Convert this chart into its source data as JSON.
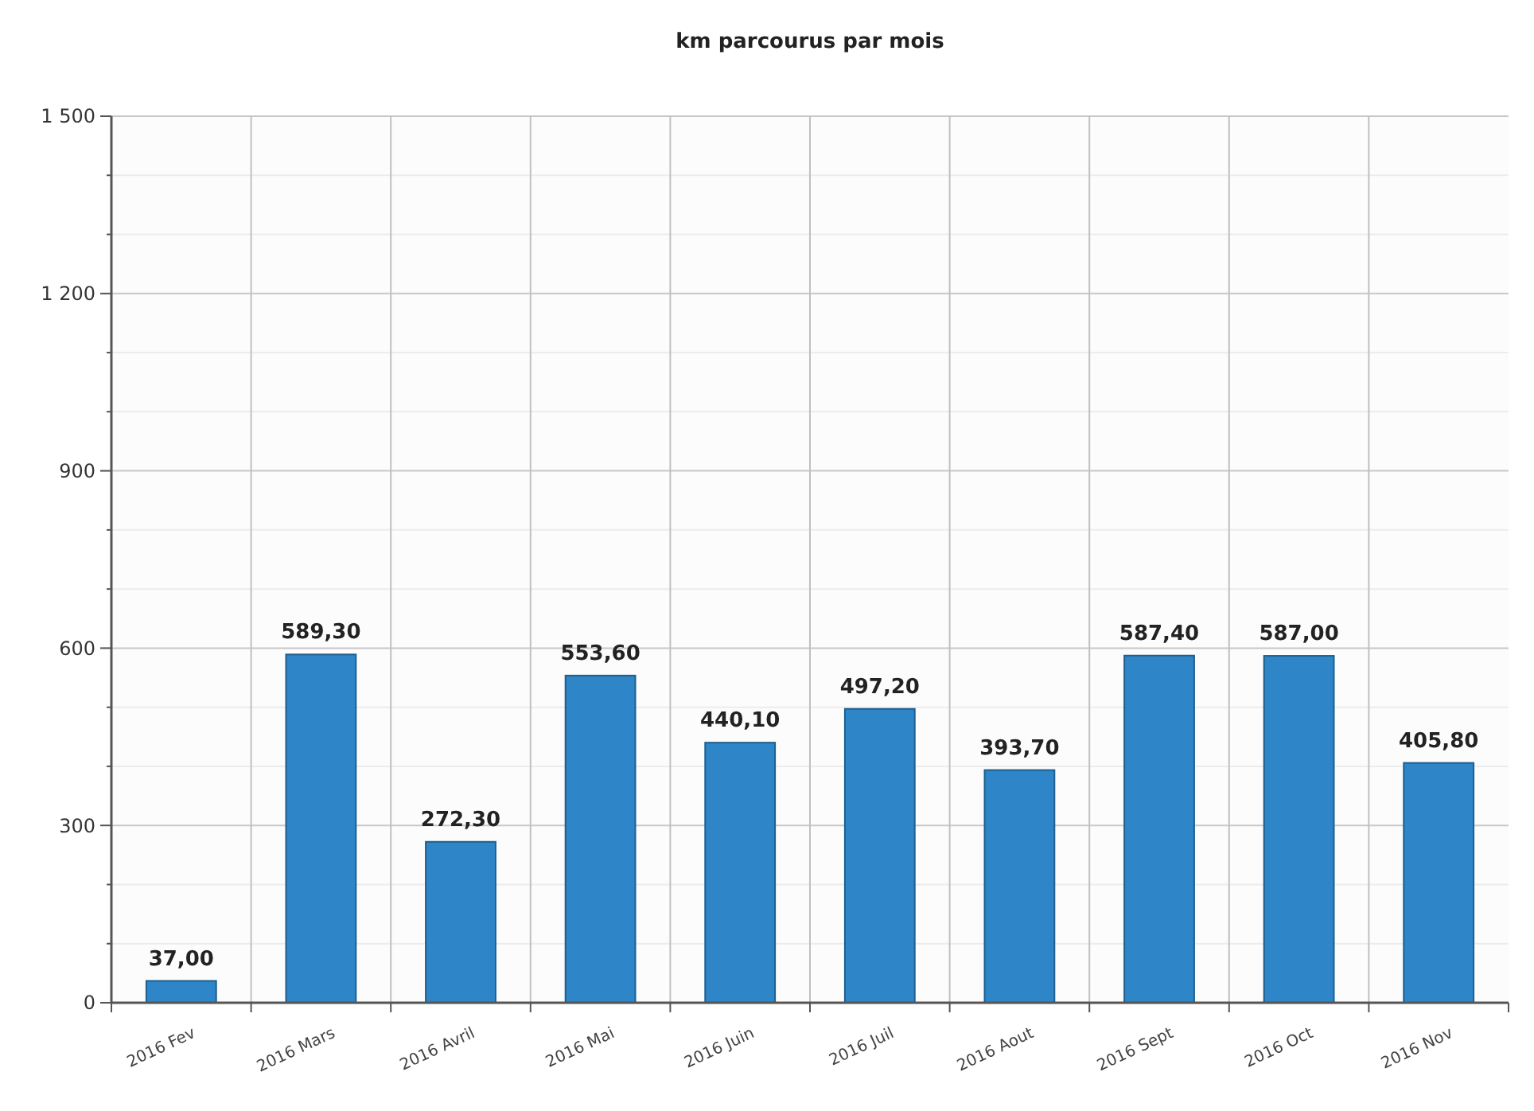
{
  "chart_data": {
    "type": "bar",
    "title": "km parcourus par mois",
    "categories": [
      "2016 Fev",
      "2016 Mars",
      "2016 Avril",
      "2016 Mai",
      "2016 Juin",
      "2016 Juil",
      "2016 Aout",
      "2016 Sept",
      "2016 Oct",
      "2016 Nov"
    ],
    "values": [
      37,
      589.3,
      272.3,
      553.6,
      440.1,
      497.2,
      393.7,
      587.4,
      587,
      405.8
    ],
    "value_labels": [
      "37,00",
      "589,30",
      "272,30",
      "553,60",
      "440,10",
      "497,20",
      "393,70",
      "587,40",
      "587,00",
      "405,80"
    ],
    "color": "#2e86c8",
    "ylim": [
      0,
      1500
    ],
    "yticks": [
      0,
      {
        "value": 100,
        "label": null
      },
      {
        "value": 200,
        "label": null
      },
      300,
      {
        "value": 400,
        "label": null
      },
      {
        "value": 500,
        "label": null
      },
      600,
      {
        "value": 700,
        "label": null
      },
      {
        "value": 800,
        "label": null
      },
      900,
      {
        "value": 1000,
        "label": null
      },
      {
        "value": 1100,
        "label": null
      },
      {
        "value": 1200,
        "label": "1 200"
      },
      {
        "value": 1300,
        "label": null
      },
      {
        "value": 1400,
        "label": null
      },
      {
        "value": 1500,
        "label": "1 500"
      }
    ],
    "grid": true
  }
}
